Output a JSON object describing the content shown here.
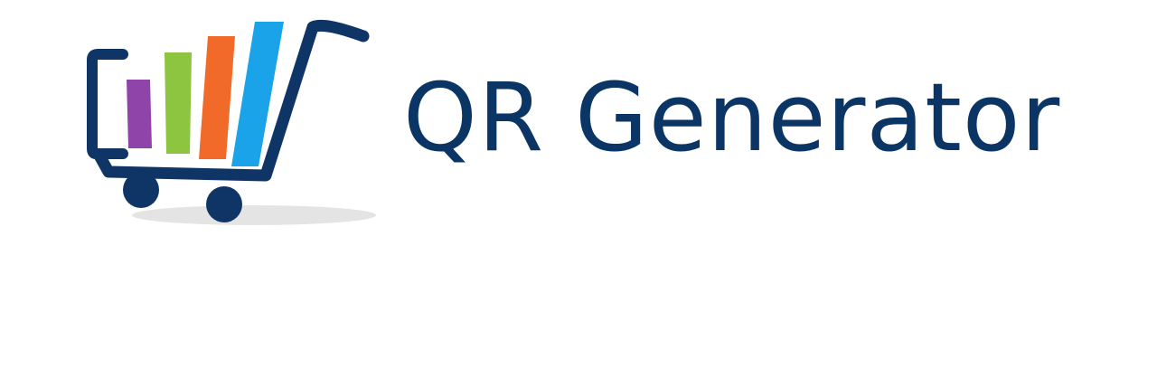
{
  "brand": {
    "name": "QR Generator",
    "text_color": "#0b3565",
    "cart_color": "#0f3566",
    "bar_colors": [
      "#8e44a8",
      "#8dc440",
      "#f26a2a",
      "#1aa3e8"
    ],
    "shadow_color": "#e4e4e4",
    "logo_icon": "shopping-cart-icon"
  }
}
